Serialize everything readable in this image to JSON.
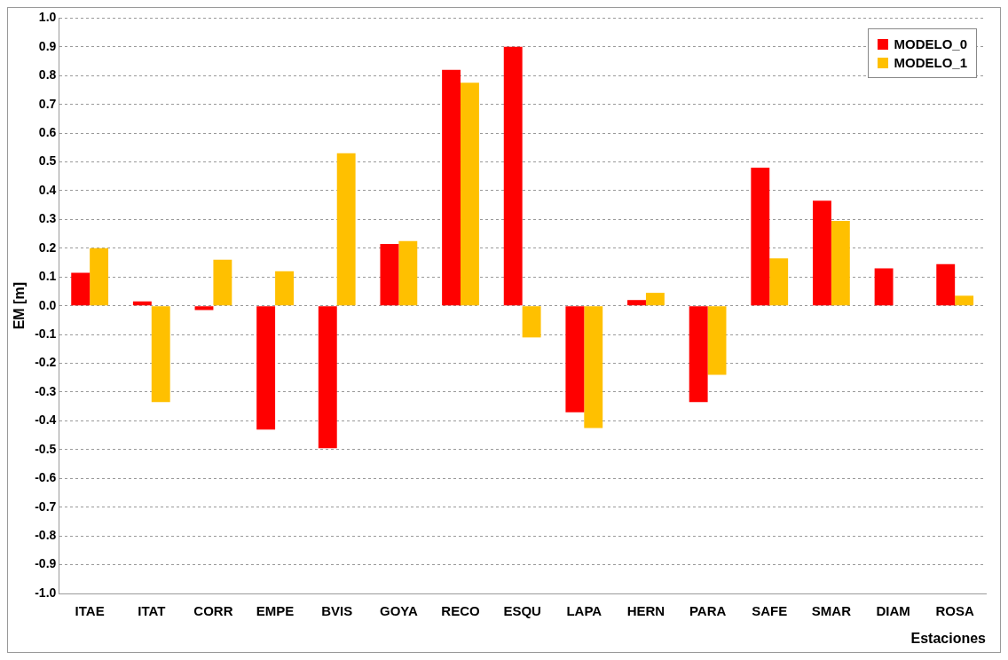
{
  "chart_data": {
    "type": "bar",
    "xlabel": "Estaciones",
    "ylabel": "EM [m]",
    "categories": [
      "ITAE",
      "ITAT",
      "CORR",
      "EMPE",
      "BVIS",
      "GOYA",
      "RECO",
      "ESQU",
      "LAPA",
      "HERN",
      "PARA",
      "SAFE",
      "SMAR",
      "DIAM",
      "ROSA"
    ],
    "series": [
      {
        "name": "MODELO_0",
        "color": "#ff0000",
        "values": [
          0.115,
          0.015,
          -0.015,
          -0.43,
          -0.495,
          0.215,
          0.82,
          0.9,
          -0.37,
          0.02,
          -0.335,
          0.48,
          0.365,
          0.13,
          0.145
        ]
      },
      {
        "name": "MODELO_1",
        "color": "#ffc000",
        "values": [
          0.2,
          -0.335,
          0.16,
          0.12,
          0.53,
          0.225,
          0.775,
          -0.11,
          -0.425,
          0.045,
          -0.24,
          0.165,
          0.295,
          null,
          0.035
        ]
      }
    ],
    "ylim": [
      -1.0,
      1.0
    ],
    "yticks": [
      {
        "value": -1,
        "label": "-1.0"
      },
      {
        "value": -0.9,
        "label": "-0.9"
      },
      {
        "value": -0.8,
        "label": "-0.8"
      },
      {
        "value": -0.7,
        "label": "-0.7"
      },
      {
        "value": -0.6,
        "label": "-0.6"
      },
      {
        "value": -0.5,
        "label": "-0.5"
      },
      {
        "value": -0.4,
        "label": "-0.4"
      },
      {
        "value": -0.3,
        "label": "-0.3"
      },
      {
        "value": -0.2,
        "label": "-0.2"
      },
      {
        "value": -0.1,
        "label": "-0.1"
      },
      {
        "value": 0,
        "label": "0.0"
      },
      {
        "value": 0.1,
        "label": "0.1"
      },
      {
        "value": 0.2,
        "label": "0.2"
      },
      {
        "value": 0.3,
        "label": "0.3"
      },
      {
        "value": 0.4,
        "label": "0.4"
      },
      {
        "value": 0.5,
        "label": "0.5"
      },
      {
        "value": 0.6,
        "label": "0.6"
      },
      {
        "value": 0.7,
        "label": "0.7"
      },
      {
        "value": 0.8,
        "label": "0.8"
      },
      {
        "value": 0.9,
        "label": "0.9"
      },
      {
        "value": 1,
        "label": "1.0"
      }
    ],
    "grid": "y",
    "legend": "top right"
  }
}
